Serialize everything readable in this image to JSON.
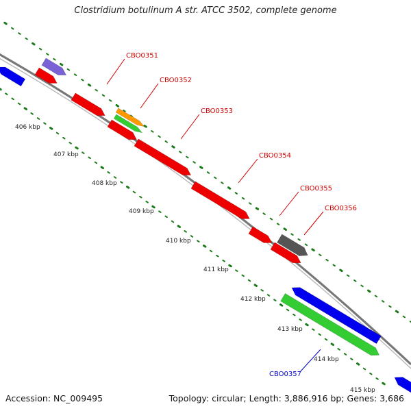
{
  "title": "Clostridium botulinum A str. ATCC 3502, complete genome",
  "accession": "Accession: NC_009495",
  "topology": "Topology: circular; Length: 3,886,916 bp; Genes: 3,686",
  "scale_labels": [
    "406 kbp",
    "407 kbp",
    "408 kbp",
    "409 kbp",
    "410 kbp",
    "411 kbp",
    "412 kbp",
    "413 kbp",
    "414 kbp",
    "415 kbp"
  ],
  "gene_labels": [
    "CBO0351",
    "CBO0352",
    "CBO0353",
    "CBO0354",
    "CBO0355",
    "CBO0356",
    "CBO0357"
  ],
  "colors": {
    "backbone": "#8a8a8a",
    "tick": "#1a7a1a",
    "red_gene": "#ee0000",
    "blue_gene": "#0000ee",
    "green_gene": "#33cc33",
    "orange_gene": "#ff9900",
    "purple_gene": "#7a62d6",
    "gray_gene": "#555555",
    "red_label": "#cc0000",
    "blue_label": "#0000cc",
    "text": "#222222"
  }
}
